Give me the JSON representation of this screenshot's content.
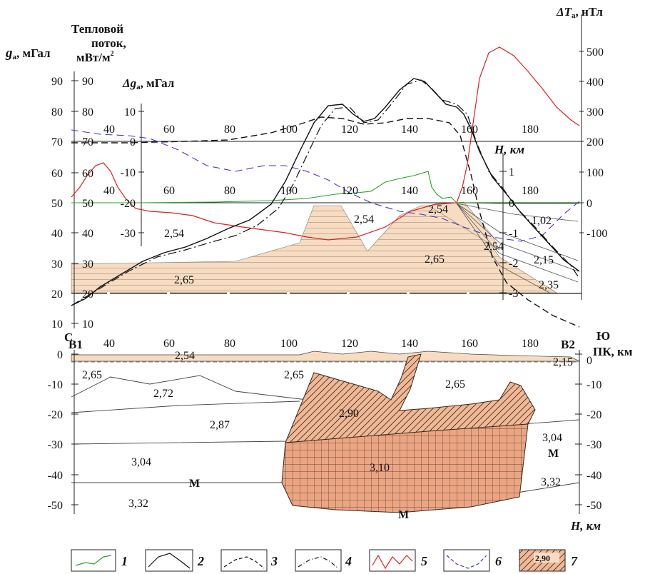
{
  "top_panel": {
    "title_g": "g",
    "title_g_sub": "a",
    "title_g_unit": ", мГал",
    "title_heat_1": "Тепловой",
    "title_heat_2": "поток,",
    "title_heat_3": "мВт/м",
    "title_heat_sup": "2",
    "title_dg": "Δg",
    "title_dg_sub": "a",
    "title_dg_unit": ", мГал",
    "title_dt": "ΔT",
    "title_dt_sub": "a",
    "title_dt_unit": ", нТл",
    "title_h": "H, км",
    "g_ticks": [
      "90",
      "80",
      "70",
      "60",
      "50",
      "40",
      "30",
      "20",
      "10"
    ],
    "heat_ticks": [
      "90",
      "80",
      "70",
      "60",
      "50",
      "40",
      "30",
      "20",
      "10"
    ],
    "dg_ticks": [
      "10",
      "0",
      "-10",
      "-20",
      "-30"
    ],
    "dt_ticks": [
      "500",
      "400",
      "300",
      "200",
      "100",
      "0",
      "-100"
    ],
    "h_ticks": [
      "1",
      "0",
      "-1",
      "-2",
      "-3"
    ],
    "x_ticks_a": [
      "40",
      "60",
      "80",
      "100",
      "120",
      "140",
      "160",
      "180"
    ],
    "x_ticks_b": [
      "40",
      "60",
      "80",
      "100",
      "120",
      "140",
      "160",
      "180"
    ],
    "densities": [
      "2,54",
      "2,54",
      "2,54",
      "2,54",
      "2,65",
      "2,65",
      "1,02",
      "2,15",
      "2,35"
    ]
  },
  "bottom_panel": {
    "left_dir": "С",
    "left_point": "В1",
    "right_dir": "Ю",
    "right_point": "В2",
    "x_label": "ПК, км",
    "h_label": "H, км",
    "x_ticks": [
      "40",
      "60",
      "80",
      "100",
      "120",
      "140",
      "160",
      "180"
    ],
    "left_ticks": [
      "0",
      "-10",
      "-20",
      "-30",
      "-40",
      "-50"
    ],
    "right_ticks": [
      "0",
      "-10",
      "-20",
      "-30",
      "-40",
      "-50"
    ],
    "densities": [
      "2,54",
      "2,15",
      "2,65",
      "2,72",
      "2,65",
      "2,65",
      "2,90",
      "2,87",
      "3,04",
      "3,10",
      "3,04",
      "3,32",
      "3,32"
    ],
    "moho": [
      "М",
      "М",
      "М"
    ]
  },
  "legend": {
    "items": [
      "1",
      "2",
      "3",
      "4",
      "5",
      "6",
      "7"
    ],
    "swatch_label": "2,90"
  },
  "colors": {
    "gravity_green": "#2ca02c",
    "heat_red": "#e02020",
    "magnetic_blue": "#3a3ac8",
    "sediment_fill": "#f7dcc2",
    "body_fill": "#eaa27e"
  }
}
